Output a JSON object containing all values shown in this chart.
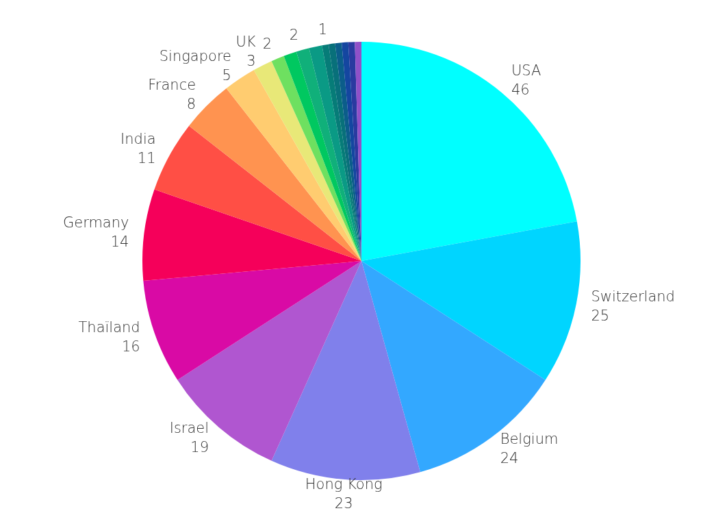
{
  "chart_data": {
    "type": "pie",
    "categories": [
      "USA",
      "Switzerland",
      "Belgium",
      "Hong Kong",
      "Israel",
      "Thaïland",
      "Germany",
      "India",
      "France",
      "Singapore",
      "UK",
      null,
      null,
      null,
      null,
      null,
      null,
      null,
      null,
      null,
      null
    ],
    "values": [
      46,
      25,
      24,
      23,
      19,
      16,
      14,
      11,
      8,
      5,
      3,
      2,
      2,
      2,
      2,
      1,
      1,
      1,
      1,
      1,
      1
    ],
    "value_labels": [
      "46",
      "25",
      "24",
      "23",
      "19",
      "16",
      "14",
      "11",
      "8",
      "5",
      "3",
      "2",
      null,
      "2",
      null,
      "1",
      null,
      null,
      null,
      null,
      null
    ],
    "colors": [
      "#00ffff",
      "#00d5ff",
      "#33a8ff",
      "#8080eb",
      "#b056d0",
      "#d90aa5",
      "#f5005a",
      "#ff4f45",
      "#ff9350",
      "#ffcc70",
      "#e8e878",
      "#6ee060",
      "#00c860",
      "#10b07a",
      "#0a9a85",
      "#067c78",
      "#08707a",
      "#0b5d8a",
      "#1446a0",
      "#2a3aa0",
      "#9050c8"
    ],
    "legend": false
  }
}
